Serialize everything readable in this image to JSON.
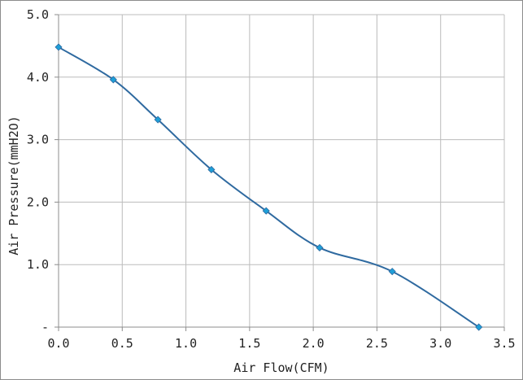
{
  "chart_data": {
    "type": "line",
    "xlabel": "Air Flow(CFM)",
    "ylabel": "Air Pressure(mmH2O)",
    "xlim": [
      0,
      3.5
    ],
    "ylim": [
      0,
      5
    ],
    "x_ticks": [
      0,
      0.5,
      1,
      1.5,
      2,
      2.5,
      3,
      3.5
    ],
    "x_tick_labels": [
      "0.0",
      "0.5",
      "1.0",
      "1.5",
      "2.0",
      "2.5",
      "3.0",
      "3.5"
    ],
    "y_ticks": [
      0,
      1,
      2,
      3,
      4,
      5
    ],
    "y_tick_labels": [
      "-",
      "1.0",
      "2.0",
      "3.0",
      "4.0",
      "5.0"
    ],
    "grid": true,
    "smooth": true,
    "series": [
      {
        "color": "#2f6aa0",
        "marker_color": "#1e9fd8",
        "marker": "diamond",
        "points": [
          {
            "x": 0.0,
            "y": 4.48
          },
          {
            "x": 0.43,
            "y": 3.96
          },
          {
            "x": 0.78,
            "y": 3.32
          },
          {
            "x": 1.2,
            "y": 2.52
          },
          {
            "x": 1.63,
            "y": 1.86
          },
          {
            "x": 2.05,
            "y": 1.27
          },
          {
            "x": 2.62,
            "y": 0.89
          },
          {
            "x": 3.3,
            "y": 0.0
          }
        ]
      }
    ]
  }
}
